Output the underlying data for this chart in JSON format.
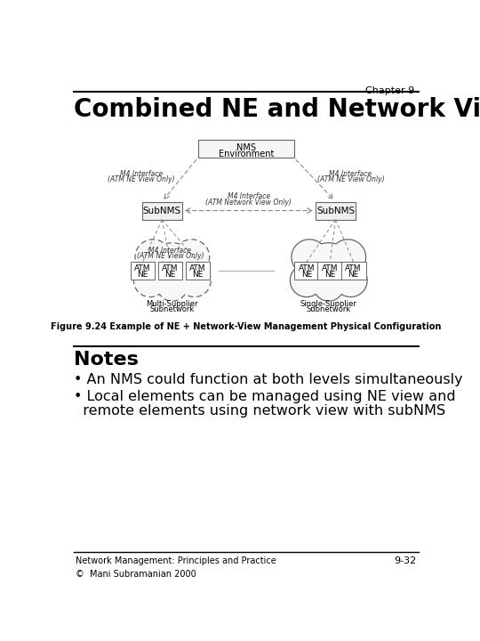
{
  "chapter": "Chapter 9",
  "title": "Combined NE and Network Views",
  "figure_caption": "Figure 9.24 Example of NE + Network-View Management Physical Configuration",
  "notes_title": "Notes",
  "bullet1": "An NMS could function at both levels simultaneously",
  "bullet2": "Local elements can be managed using NE view and",
  "bullet2b": "  remote elements using network view with subNMS",
  "footer_left": "Network Management: Principles and Practice\n©  Mani Subramanian 2000",
  "footer_right": "9-32",
  "bg_color": "#ffffff",
  "text_color": "#000000"
}
